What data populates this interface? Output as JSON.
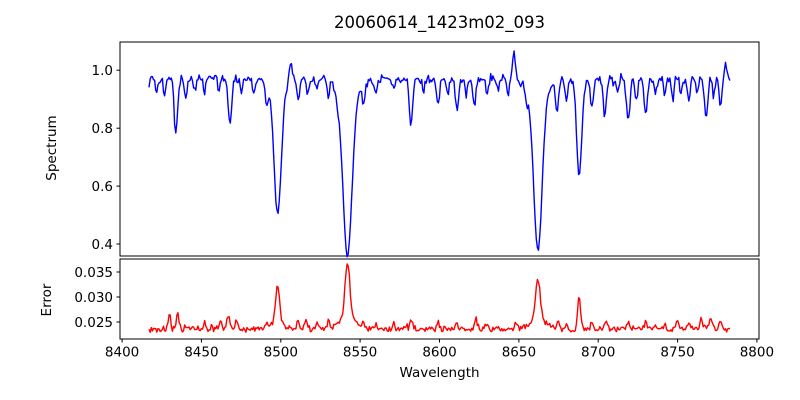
{
  "title": "20060614_1423m02_093",
  "colors": {
    "background": "#ffffff",
    "axis": "#000000",
    "text": "#000000",
    "spectrum_line": "#0000ff",
    "error_line": "#ff0000"
  },
  "chart_data": [
    {
      "type": "line",
      "title": "20060614_1423m02_093",
      "ylabel": "Spectrum",
      "color": "#0000ff",
      "x_start": 8417,
      "x_end": 8783,
      "n_points": 523,
      "xlim": [
        8398.7,
        8801.3
      ],
      "ylim": [
        0.3586,
        1.0975
      ],
      "yticks": [
        0.4,
        0.6,
        0.8,
        1.0
      ],
      "ytick_labels": [
        "0.4",
        "0.6",
        "0.8",
        "1.0"
      ],
      "grid": false,
      "legend": "none",
      "continuum": 0.972,
      "noise_amplitude": 0.021,
      "seed": 7,
      "absorption_lines": [
        {
          "center": 8422,
          "depth": 0.05,
          "sigma": 0.8
        },
        {
          "center": 8427,
          "depth": 0.06,
          "sigma": 0.8
        },
        {
          "center": 8434,
          "depth": 0.19,
          "sigma": 1.1
        },
        {
          "center": 8440,
          "depth": 0.06,
          "sigma": 0.8
        },
        {
          "center": 8446,
          "depth": 0.04,
          "sigma": 0.8
        },
        {
          "center": 8452,
          "depth": 0.05,
          "sigma": 0.8
        },
        {
          "center": 8461,
          "depth": 0.05,
          "sigma": 0.8
        },
        {
          "center": 8468,
          "depth": 0.16,
          "sigma": 1.1
        },
        {
          "center": 8475,
          "depth": 0.05,
          "sigma": 0.8
        },
        {
          "center": 8483,
          "depth": 0.05,
          "sigma": 0.8
        },
        {
          "center": 8491,
          "depth": 0.06,
          "sigma": 0.8
        },
        {
          "center": 8498,
          "depth": 0.45,
          "sigma": 2.2
        },
        {
          "center": 8498,
          "depth": 0.05,
          "sigma": 6.0
        },
        {
          "center": 8511,
          "depth": 0.08,
          "sigma": 0.9
        },
        {
          "center": 8517,
          "depth": 0.05,
          "sigma": 0.8
        },
        {
          "center": 8523,
          "depth": 0.04,
          "sigma": 0.8
        },
        {
          "center": 8530,
          "depth": 0.05,
          "sigma": 0.8
        },
        {
          "center": 8536,
          "depth": 0.04,
          "sigma": 0.8
        },
        {
          "center": 8542,
          "depth": 0.61,
          "sigma": 2.8
        },
        {
          "center": 8542,
          "depth": 0.06,
          "sigma": 7.0
        },
        {
          "center": 8552,
          "depth": 0.07,
          "sigma": 0.9
        },
        {
          "center": 8560,
          "depth": 0.05,
          "sigma": 0.8
        },
        {
          "center": 8571,
          "depth": 0.04,
          "sigma": 0.8
        },
        {
          "center": 8582,
          "depth": 0.17,
          "sigma": 1.1
        },
        {
          "center": 8590,
          "depth": 0.05,
          "sigma": 0.8
        },
        {
          "center": 8599,
          "depth": 0.09,
          "sigma": 0.9
        },
        {
          "center": 8605,
          "depth": 0.05,
          "sigma": 0.8
        },
        {
          "center": 8611,
          "depth": 0.12,
          "sigma": 1.0
        },
        {
          "center": 8617,
          "depth": 0.06,
          "sigma": 0.8
        },
        {
          "center": 8622,
          "depth": 0.09,
          "sigma": 0.9
        },
        {
          "center": 8630,
          "depth": 0.05,
          "sigma": 0.8
        },
        {
          "center": 8637,
          "depth": 0.04,
          "sigma": 0.8
        },
        {
          "center": 8643,
          "depth": 0.05,
          "sigma": 0.8
        },
        {
          "center": 8655,
          "depth": 0.06,
          "sigma": 0.8
        },
        {
          "center": 8662,
          "depth": 0.585,
          "sigma": 2.6
        },
        {
          "center": 8662,
          "depth": 0.06,
          "sigma": 6.5
        },
        {
          "center": 8674,
          "depth": 0.12,
          "sigma": 0.9
        },
        {
          "center": 8680,
          "depth": 0.07,
          "sigma": 0.8
        },
        {
          "center": 8688,
          "depth": 0.35,
          "sigma": 1.6
        },
        {
          "center": 8696,
          "depth": 0.1,
          "sigma": 0.9
        },
        {
          "center": 8704,
          "depth": 0.13,
          "sigma": 1.0
        },
        {
          "center": 8712,
          "depth": 0.06,
          "sigma": 0.8
        },
        {
          "center": 8719,
          "depth": 0.15,
          "sigma": 1.1
        },
        {
          "center": 8724,
          "depth": 0.07,
          "sigma": 0.8
        },
        {
          "center": 8730,
          "depth": 0.12,
          "sigma": 1.0
        },
        {
          "center": 8736,
          "depth": 0.05,
          "sigma": 0.8
        },
        {
          "center": 8742,
          "depth": 0.05,
          "sigma": 0.8
        },
        {
          "center": 8747,
          "depth": 0.07,
          "sigma": 0.8
        },
        {
          "center": 8752,
          "depth": 0.05,
          "sigma": 0.8
        },
        {
          "center": 8757,
          "depth": 0.08,
          "sigma": 0.8
        },
        {
          "center": 8762,
          "depth": 0.05,
          "sigma": 0.8
        },
        {
          "center": 8768,
          "depth": 0.14,
          "sigma": 1.1
        },
        {
          "center": 8773,
          "depth": 0.06,
          "sigma": 0.8
        },
        {
          "center": 8777,
          "depth": 0.09,
          "sigma": 0.9
        }
      ],
      "emission_spikes": [
        {
          "center": 8506,
          "height": 0.08,
          "sigma": 0.9
        },
        {
          "center": 8647,
          "height": 0.1,
          "sigma": 0.9
        },
        {
          "center": 8780,
          "height": 0.04,
          "sigma": 1.0
        }
      ]
    },
    {
      "type": "line",
      "ylabel": "Error",
      "xlabel": "Wavelength",
      "color": "#ff0000",
      "x_start": 8417,
      "x_end": 8783,
      "n_points": 523,
      "xlim": [
        8398.7,
        8801.3
      ],
      "ylim": [
        0.0216,
        0.0376
      ],
      "yticks": [
        0.025,
        0.03,
        0.035
      ],
      "ytick_labels": [
        "0.025",
        "0.030",
        "0.035"
      ],
      "xticks": [
        8400,
        8450,
        8500,
        8550,
        8600,
        8650,
        8700,
        8750,
        8800
      ],
      "xtick_labels": [
        "8400",
        "8450",
        "8500",
        "8550",
        "8600",
        "8650",
        "8700",
        "8750",
        "8800"
      ],
      "grid": false,
      "legend": "none",
      "baseline": 0.0236,
      "noise_amplitude": 0.0007,
      "seed": 13,
      "peaks": [
        {
          "center": 8430,
          "amp": 0.0028,
          "sigma": 0.7
        },
        {
          "center": 8435,
          "amp": 0.003,
          "sigma": 0.8
        },
        {
          "center": 8452,
          "amp": 0.0012,
          "sigma": 0.7
        },
        {
          "center": 8462,
          "amp": 0.0014,
          "sigma": 0.8
        },
        {
          "center": 8467,
          "amp": 0.0026,
          "sigma": 1.0
        },
        {
          "center": 8472,
          "amp": 0.0014,
          "sigma": 0.7
        },
        {
          "center": 8491,
          "amp": 0.0012,
          "sigma": 0.7
        },
        {
          "center": 8498,
          "amp": 0.0075,
          "sigma": 1.2
        },
        {
          "center": 8498,
          "amp": 0.0014,
          "sigma": 4.0
        },
        {
          "center": 8511,
          "amp": 0.0016,
          "sigma": 0.8
        },
        {
          "center": 8516,
          "amp": 0.002,
          "sigma": 0.8
        },
        {
          "center": 8523,
          "amp": 0.0012,
          "sigma": 0.7
        },
        {
          "center": 8530,
          "amp": 0.0012,
          "sigma": 0.7
        },
        {
          "center": 8542,
          "amp": 0.0112,
          "sigma": 1.5
        },
        {
          "center": 8542,
          "amp": 0.0022,
          "sigma": 5.0
        },
        {
          "center": 8552,
          "amp": 0.0013,
          "sigma": 0.8
        },
        {
          "center": 8560,
          "amp": 0.0011,
          "sigma": 0.7
        },
        {
          "center": 8571,
          "amp": 0.001,
          "sigma": 0.7
        },
        {
          "center": 8582,
          "amp": 0.0016,
          "sigma": 0.9
        },
        {
          "center": 8599,
          "amp": 0.0012,
          "sigma": 0.8
        },
        {
          "center": 8611,
          "amp": 0.0013,
          "sigma": 0.8
        },
        {
          "center": 8623,
          "amp": 0.0021,
          "sigma": 0.9
        },
        {
          "center": 8630,
          "amp": 0.001,
          "sigma": 0.7
        },
        {
          "center": 8648,
          "amp": 0.0011,
          "sigma": 0.7
        },
        {
          "center": 8662,
          "amp": 0.0082,
          "sigma": 1.4
        },
        {
          "center": 8662,
          "amp": 0.002,
          "sigma": 4.5
        },
        {
          "center": 8675,
          "amp": 0.0019,
          "sigma": 0.8
        },
        {
          "center": 8680,
          "amp": 0.0013,
          "sigma": 0.7
        },
        {
          "center": 8688,
          "amp": 0.0062,
          "sigma": 0.9
        },
        {
          "center": 8696,
          "amp": 0.0013,
          "sigma": 0.7
        },
        {
          "center": 8705,
          "amp": 0.0016,
          "sigma": 0.8
        },
        {
          "center": 8719,
          "amp": 0.0018,
          "sigma": 0.8
        },
        {
          "center": 8730,
          "amp": 0.0016,
          "sigma": 0.8
        },
        {
          "center": 8742,
          "amp": 0.0012,
          "sigma": 0.7
        },
        {
          "center": 8750,
          "amp": 0.0013,
          "sigma": 0.8
        },
        {
          "center": 8757,
          "amp": 0.0013,
          "sigma": 0.7
        },
        {
          "center": 8765,
          "amp": 0.0019,
          "sigma": 0.9
        },
        {
          "center": 8771,
          "amp": 0.0023,
          "sigma": 0.9
        },
        {
          "center": 8777,
          "amp": 0.0015,
          "sigma": 0.8
        }
      ]
    }
  ]
}
